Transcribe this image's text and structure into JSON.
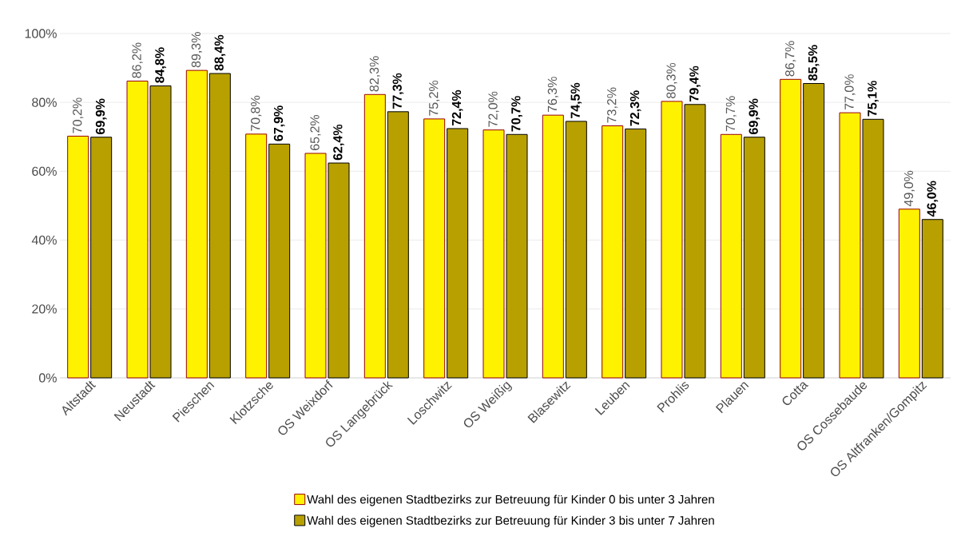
{
  "chart_data": {
    "type": "bar",
    "categories": [
      "Altstadt",
      "Neustadt",
      "Pieschen",
      "Klotzsche",
      "OS Weixdorf",
      "OS Langebrück",
      "Loschwitz",
      "OS Weißig",
      "Blasewitz",
      "Leuben",
      "Prohlis",
      "Plauen",
      "Cotta",
      "OS Cossebaude",
      "OS Altfranken/Gompitz"
    ],
    "series": [
      {
        "name": "Wahl des eigenen Stadtbezirks zur Betreuung für Kinder 0 bis unter 3 Jahren",
        "color": "#fff200",
        "values": [
          70.2,
          86.2,
          89.3,
          70.8,
          65.2,
          82.3,
          75.2,
          72.0,
          76.3,
          73.2,
          80.3,
          70.7,
          86.7,
          77.0,
          49.0
        ],
        "value_labels": [
          "70,2%",
          "86,2%",
          "89,3%",
          "70,8%",
          "65,2%",
          "82,3%",
          "75,2%",
          "72,0%",
          "76,3%",
          "73,2%",
          "80,3%",
          "70,7%",
          "86,7%",
          "77,0%",
          "49,0%"
        ]
      },
      {
        "name": "Wahl des eigenen Stadtbezirks zur Betreuung für Kinder 3 bis unter 7 Jahren",
        "color": "#b8a000",
        "values": [
          69.9,
          84.8,
          88.4,
          67.9,
          62.4,
          77.3,
          72.4,
          70.7,
          74.5,
          72.3,
          79.4,
          69.9,
          85.5,
          75.1,
          46.0
        ],
        "value_labels": [
          "69,9%",
          "84,8%",
          "88,4%",
          "67,9%",
          "62,4%",
          "77,3%",
          "72,4%",
          "70,7%",
          "74,5%",
          "72,3%",
          "79,4%",
          "69,9%",
          "85,5%",
          "75,1%",
          "46,0%"
        ]
      }
    ],
    "ylim": [
      0,
      100
    ],
    "yticks": [
      {
        "value": 0,
        "label": "0%"
      },
      {
        "value": 20,
        "label": "20%"
      },
      {
        "value": 40,
        "label": "40%"
      },
      {
        "value": 60,
        "label": "60%"
      },
      {
        "value": 80,
        "label": "80%"
      },
      {
        "value": 100,
        "label": "100%"
      }
    ],
    "grid": "y",
    "legend": "bottom"
  }
}
